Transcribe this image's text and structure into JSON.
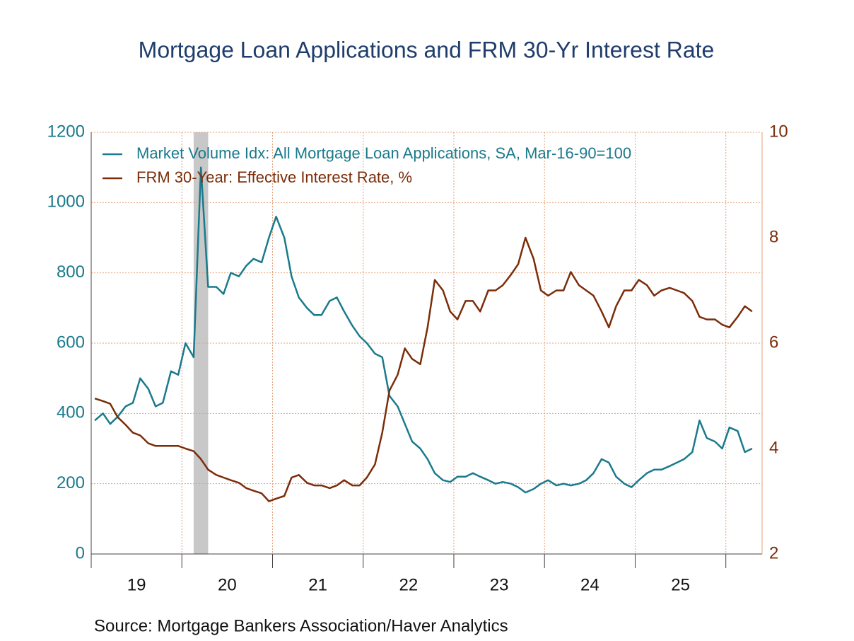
{
  "chart_data": {
    "type": "line",
    "title": "Mortgage Loan Applications and FRM 30-Yr Interest Rate",
    "source": "Source:  Mortgage Bankers Association/Haver Analytics",
    "x": [
      2019.04,
      2019.13,
      2019.21,
      2019.29,
      2019.38,
      2019.46,
      2019.54,
      2019.63,
      2019.71,
      2019.79,
      2019.88,
      2019.96,
      2020.04,
      2020.13,
      2020.21,
      2020.29,
      2020.38,
      2020.46,
      2020.54,
      2020.63,
      2020.71,
      2020.79,
      2020.88,
      2020.96,
      2021.04,
      2021.13,
      2021.21,
      2021.29,
      2021.38,
      2021.46,
      2021.54,
      2021.63,
      2021.71,
      2021.79,
      2021.88,
      2021.96,
      2022.04,
      2022.13,
      2022.21,
      2022.29,
      2022.38,
      2022.46,
      2022.54,
      2022.63,
      2022.71,
      2022.79,
      2022.88,
      2022.96,
      2023.04,
      2023.13,
      2023.21,
      2023.29,
      2023.38,
      2023.46,
      2023.54,
      2023.63,
      2023.71,
      2023.79,
      2023.88,
      2023.96,
      2024.04,
      2024.13,
      2024.21,
      2024.29,
      2024.38,
      2024.46,
      2024.54,
      2024.63,
      2024.71,
      2024.79,
      2024.88,
      2024.96,
      2025.04,
      2025.13,
      2025.21,
      2025.29,
      2025.38,
      2025.46,
      2025.54,
      2025.63,
      2025.71,
      2025.79,
      2025.88,
      2025.96,
      2026.04,
      2026.13,
      2026.21,
      2026.29
    ],
    "series": [
      {
        "name": "Market Volume Idx: All Mortgage Loan Applications, SA, Mar-16-90=100",
        "color": "#1a7a8c",
        "axis": "y",
        "values": [
          380,
          400,
          370,
          390,
          420,
          430,
          500,
          470,
          420,
          430,
          520,
          510,
          600,
          560,
          1100,
          760,
          760,
          740,
          800,
          790,
          820,
          840,
          830,
          900,
          960,
          900,
          790,
          730,
          700,
          680,
          680,
          720,
          730,
          690,
          650,
          620,
          600,
          570,
          560,
          450,
          420,
          370,
          320,
          300,
          270,
          230,
          210,
          205,
          220,
          220,
          230,
          220,
          210,
          200,
          205,
          200,
          190,
          175,
          185,
          200,
          210,
          195,
          200,
          195,
          200,
          210,
          230,
          270,
          260,
          220,
          200,
          190,
          210,
          230,
          240,
          240,
          250,
          260,
          270,
          290,
          380,
          330,
          320,
          300,
          360,
          350,
          290,
          300
        ]
      },
      {
        "name": "FRM 30-Year: Effective Interest Rate, %",
        "color": "#7b2d0a",
        "axis": "y2",
        "values": [
          4.95,
          4.9,
          4.85,
          4.6,
          4.45,
          4.3,
          4.25,
          4.1,
          4.05,
          4.05,
          4.05,
          4.05,
          4.0,
          3.95,
          3.8,
          3.6,
          3.5,
          3.45,
          3.4,
          3.35,
          3.25,
          3.2,
          3.15,
          3.0,
          3.05,
          3.1,
          3.45,
          3.5,
          3.35,
          3.3,
          3.3,
          3.25,
          3.3,
          3.4,
          3.3,
          3.3,
          3.45,
          3.7,
          4.3,
          5.1,
          5.4,
          5.9,
          5.7,
          5.6,
          6.3,
          7.2,
          7.0,
          6.6,
          6.45,
          6.8,
          6.8,
          6.6,
          7.0,
          7.0,
          7.1,
          7.3,
          7.5,
          8.0,
          7.6,
          7.0,
          6.9,
          7.0,
          7.0,
          7.35,
          7.1,
          7.0,
          6.9,
          6.6,
          6.3,
          6.7,
          7.0,
          7.0,
          7.2,
          7.1,
          6.9,
          7.0,
          7.05,
          7.0,
          6.95,
          6.8,
          6.5,
          6.45,
          6.45,
          6.35,
          6.3,
          6.5,
          6.7,
          6.6
        ]
      }
    ],
    "recession": [
      2020.13,
      2020.29
    ],
    "xlim": [
      2019,
      2026.4
    ],
    "xticks": [
      2019,
      2020,
      2021,
      2022,
      2023,
      2024,
      2025,
      2026
    ],
    "xtick_labels": [
      {
        "value": 2019.5,
        "label": "19"
      },
      {
        "value": 2020.5,
        "label": "20"
      },
      {
        "value": 2021.5,
        "label": "21"
      },
      {
        "value": 2022.5,
        "label": "22"
      },
      {
        "value": 2023.5,
        "label": "23"
      },
      {
        "value": 2024.5,
        "label": "24"
      },
      {
        "value": 2025.5,
        "label": "25"
      }
    ],
    "ylim": [
      0,
      1200
    ],
    "yticks": [
      0,
      200,
      400,
      600,
      800,
      1000,
      1200
    ],
    "y2lim": [
      2,
      10
    ],
    "y2ticks": [
      2,
      4,
      6,
      8,
      10
    ],
    "grid": true
  }
}
